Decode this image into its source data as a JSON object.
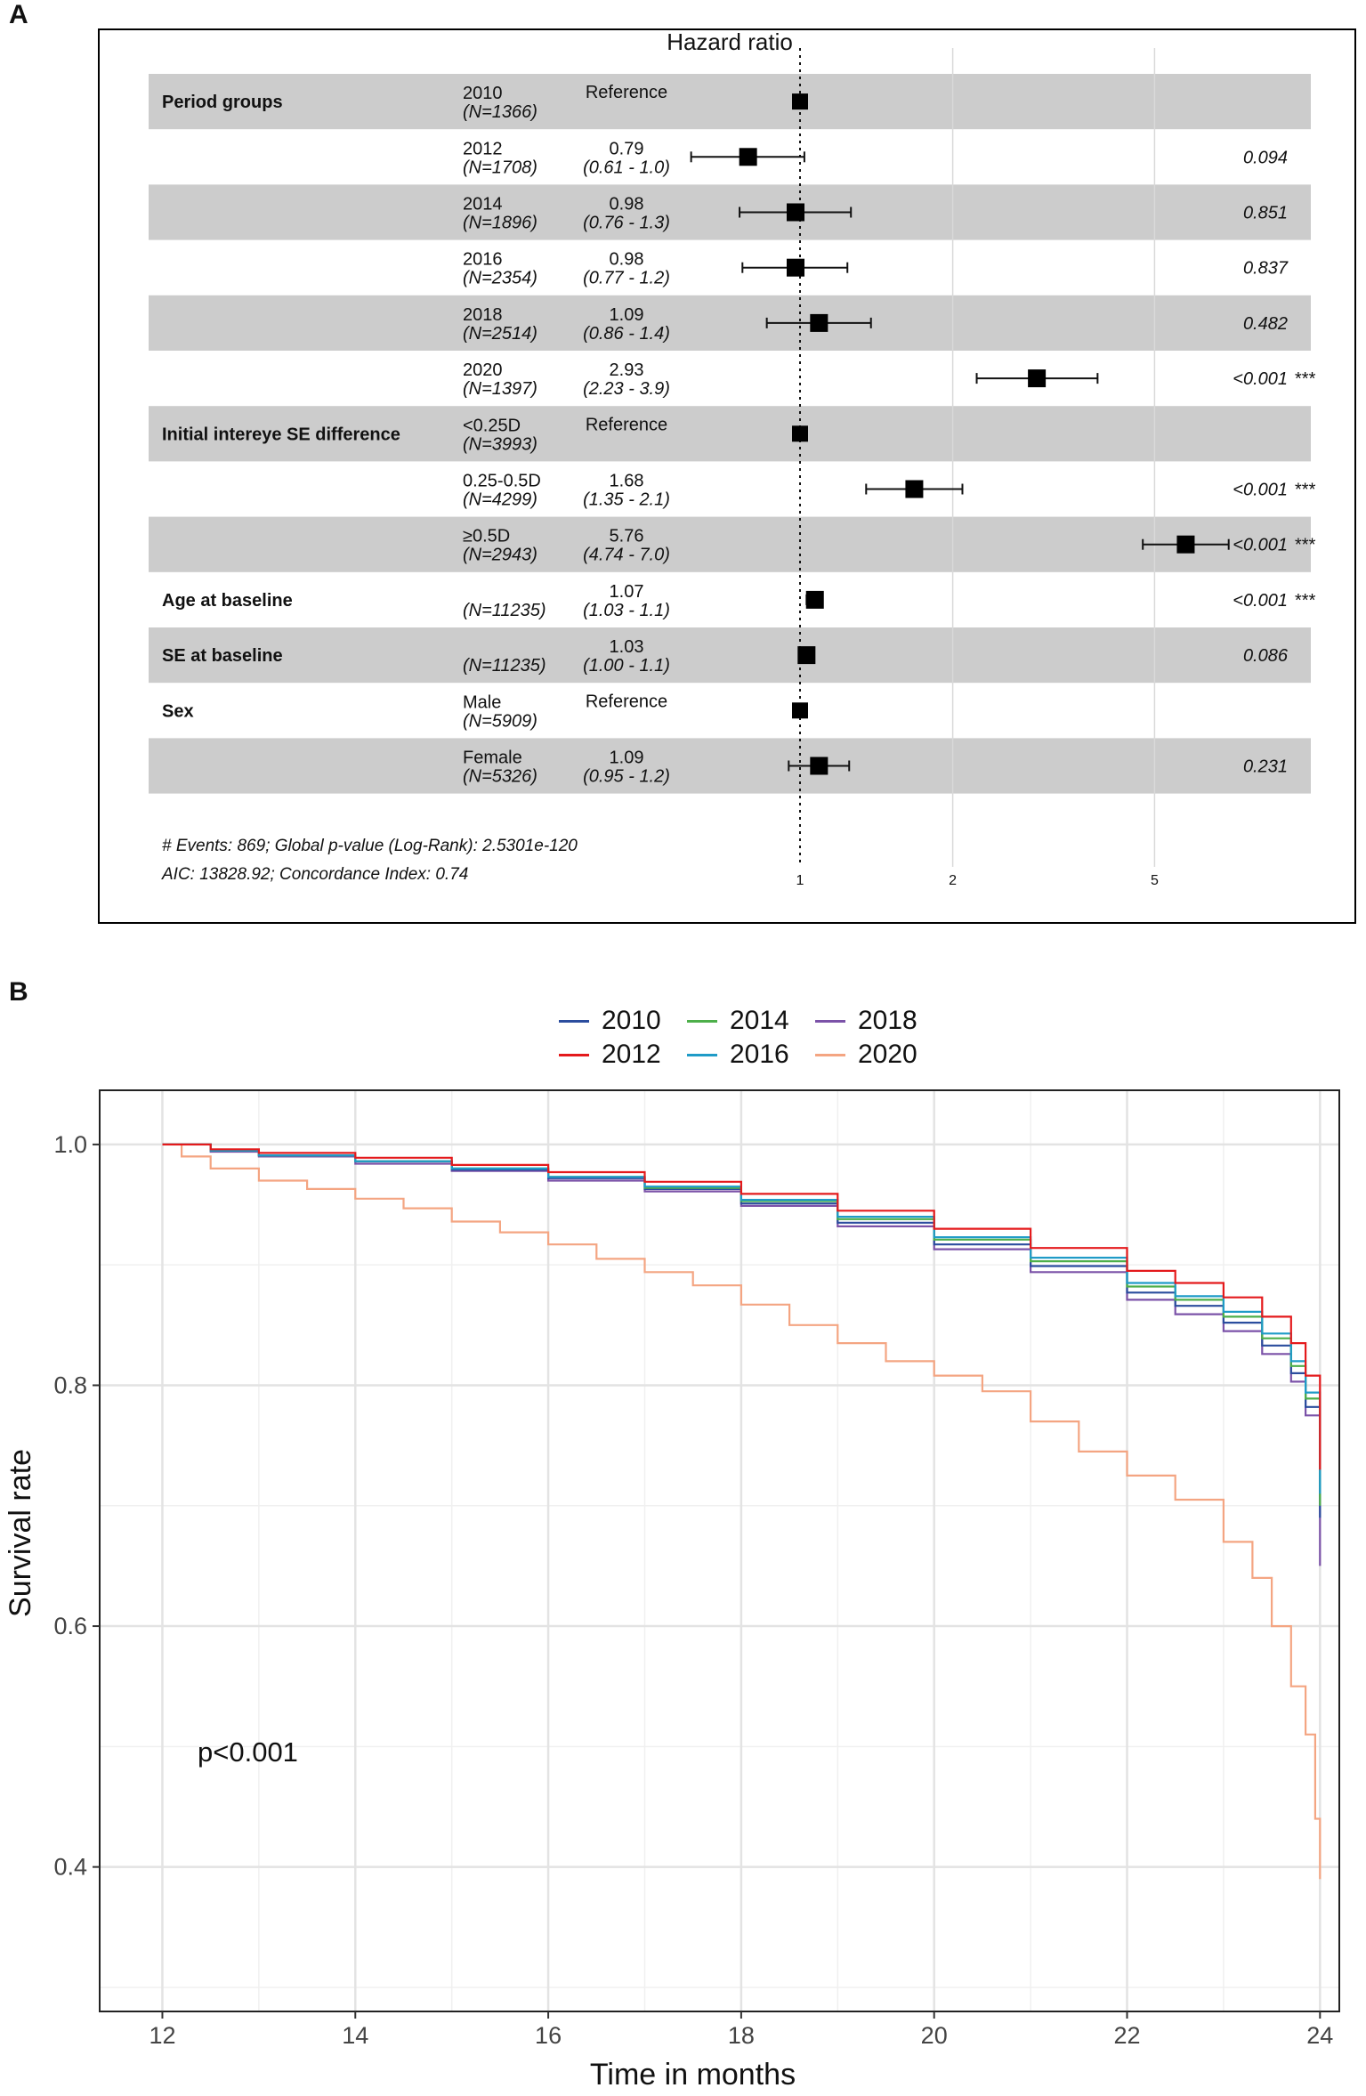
{
  "panel_a_label": "A",
  "panel_b_label": "B",
  "chart_data": [
    {
      "type": "forest",
      "title": "Hazard ratio",
      "x_scale": "log",
      "x_ticks": [
        "1",
        "2",
        "5"
      ],
      "x_tick_values": [
        1,
        2,
        5
      ],
      "reference_value": 1,
      "rows": [
        {
          "variable": "Period groups",
          "level": "2010",
          "n": "(N=1366)",
          "hr": "Reference",
          "ci": "",
          "p": "",
          "stars": "",
          "hr_value": 1.0,
          "ci_low": null,
          "ci_high": null
        },
        {
          "variable": "",
          "level": "2012",
          "n": "(N=1708)",
          "hr": "0.79",
          "ci": "(0.61 - 1.0)",
          "p": "0.094",
          "stars": "",
          "hr_value": 0.79,
          "ci_low": 0.61,
          "ci_high": 1.02
        },
        {
          "variable": "",
          "level": "2014",
          "n": "(N=1896)",
          "hr": "0.98",
          "ci": "(0.76 - 1.3)",
          "p": "0.851",
          "stars": "",
          "hr_value": 0.98,
          "ci_low": 0.76,
          "ci_high": 1.26
        },
        {
          "variable": "",
          "level": "2016",
          "n": "(N=2354)",
          "hr": "0.98",
          "ci": "(0.77 - 1.2)",
          "p": "0.837",
          "stars": "",
          "hr_value": 0.98,
          "ci_low": 0.77,
          "ci_high": 1.24
        },
        {
          "variable": "",
          "level": "2018",
          "n": "(N=2514)",
          "hr": "1.09",
          "ci": "(0.86 - 1.4)",
          "p": "0.482",
          "stars": "",
          "hr_value": 1.09,
          "ci_low": 0.86,
          "ci_high": 1.38
        },
        {
          "variable": "",
          "level": "2020",
          "n": "(N=1397)",
          "hr": "2.93",
          "ci": "(2.23 - 3.9)",
          "p": "<0.001",
          "stars": "***",
          "hr_value": 2.93,
          "ci_low": 2.23,
          "ci_high": 3.86
        },
        {
          "variable": "Initial intereye SE difference",
          "level": "<0.25D",
          "n": "(N=3993)",
          "hr": "Reference",
          "ci": "",
          "p": "",
          "stars": "",
          "hr_value": 1.0,
          "ci_low": null,
          "ci_high": null
        },
        {
          "variable": "",
          "level": "0.25-0.5D",
          "n": "(N=4299)",
          "hr": "1.68",
          "ci": "(1.35 - 2.1)",
          "p": "<0.001",
          "stars": "***",
          "hr_value": 1.68,
          "ci_low": 1.35,
          "ci_high": 2.09
        },
        {
          "variable": "",
          "level": "≥0.5D",
          "n": "(N=2943)",
          "hr": "5.76",
          "ci": "(4.74 - 7.0)",
          "p": "<0.001",
          "stars": "***",
          "hr_value": 5.76,
          "ci_low": 4.74,
          "ci_high": 7.0
        },
        {
          "variable": "Age at baseline",
          "level": "",
          "n": "(N=11235)",
          "hr": "1.07",
          "ci": "(1.03 - 1.1)",
          "p": "<0.001",
          "stars": "***",
          "hr_value": 1.07,
          "ci_low": 1.03,
          "ci_high": 1.1
        },
        {
          "variable": "SE at baseline",
          "level": "",
          "n": "(N=11235)",
          "hr": "1.03",
          "ci": "(1.00 - 1.1)",
          "p": "0.086",
          "stars": "",
          "hr_value": 1.03,
          "ci_low": 1.0,
          "ci_high": 1.06
        },
        {
          "variable": "Sex",
          "level": "Male",
          "n": "(N=5909)",
          "hr": "Reference",
          "ci": "",
          "p": "",
          "stars": "",
          "hr_value": 1.0,
          "ci_low": null,
          "ci_high": null
        },
        {
          "variable": "",
          "level": "Female",
          "n": "(N=5326)",
          "hr": "1.09",
          "ci": "(0.95 - 1.2)",
          "p": "0.231",
          "stars": "",
          "hr_value": 1.09,
          "ci_low": 0.95,
          "ci_high": 1.25
        }
      ],
      "footnote_1": "# Events: 869; Global p-value (Log-Rank): 2.5301e-120",
      "footnote_2": "AIC: 13828.92; Concordance Index: 0.74"
    },
    {
      "type": "line",
      "subtype": "kaplan-meier",
      "xlabel": "Time in months",
      "ylabel": "Survival rate",
      "xlim": [
        11.35,
        24.2
      ],
      "ylim": [
        0.28,
        1.045
      ],
      "x_ticks": [
        12,
        14,
        16,
        18,
        20,
        22,
        24
      ],
      "y_ticks": [
        0.4,
        0.6,
        0.8,
        1.0
      ],
      "y_tick_labels": [
        "0.4",
        "0.6",
        "0.8",
        "1.0"
      ],
      "annotation": "p<0.001",
      "grid": true,
      "legend_position": "top",
      "series": [
        {
          "name": "2010",
          "color": "#2b4d9e",
          "x": [
            12,
            12.5,
            13,
            14,
            15,
            16,
            17,
            18,
            19,
            20,
            21,
            22,
            22.5,
            23,
            23.4,
            23.7,
            23.85,
            24
          ],
          "y": [
            1.0,
            0.995,
            0.991,
            0.986,
            0.979,
            0.972,
            0.963,
            0.951,
            0.935,
            0.917,
            0.899,
            0.877,
            0.866,
            0.852,
            0.833,
            0.81,
            0.782,
            0.69
          ]
        },
        {
          "name": "2012",
          "color": "#e41a1c",
          "x": [
            12,
            12.5,
            13,
            14,
            15,
            16,
            17,
            18,
            19,
            20,
            21,
            22,
            22.5,
            23,
            23.4,
            23.7,
            23.85,
            24
          ],
          "y": [
            1.0,
            0.996,
            0.993,
            0.989,
            0.983,
            0.977,
            0.969,
            0.959,
            0.945,
            0.93,
            0.914,
            0.895,
            0.885,
            0.873,
            0.857,
            0.835,
            0.808,
            0.73
          ]
        },
        {
          "name": "2014",
          "color": "#4daf4a",
          "x": [
            12,
            12.5,
            13,
            14,
            15,
            16,
            17,
            18,
            19,
            20,
            21,
            22,
            22.5,
            23,
            23.4,
            23.7,
            23.85,
            24
          ],
          "y": [
            1.0,
            0.995,
            0.991,
            0.986,
            0.98,
            0.973,
            0.964,
            0.953,
            0.938,
            0.921,
            0.903,
            0.882,
            0.871,
            0.857,
            0.839,
            0.816,
            0.789,
            0.7
          ]
        },
        {
          "name": "2016",
          "color": "#1f9bc7",
          "x": [
            12,
            12.5,
            13,
            14,
            15,
            16,
            17,
            18,
            19,
            20,
            21,
            22,
            22.5,
            23,
            23.4,
            23.7,
            23.85,
            24
          ],
          "y": [
            1.0,
            0.995,
            0.991,
            0.986,
            0.98,
            0.973,
            0.965,
            0.954,
            0.94,
            0.923,
            0.906,
            0.885,
            0.874,
            0.861,
            0.843,
            0.82,
            0.794,
            0.71
          ]
        },
        {
          "name": "2018",
          "color": "#7b52a8",
          "x": [
            12,
            12.5,
            13,
            14,
            15,
            16,
            17,
            18,
            19,
            20,
            21,
            22,
            22.5,
            23,
            23.4,
            23.7,
            23.85,
            24
          ],
          "y": [
            1.0,
            0.994,
            0.99,
            0.984,
            0.978,
            0.97,
            0.961,
            0.949,
            0.932,
            0.913,
            0.894,
            0.871,
            0.859,
            0.845,
            0.826,
            0.803,
            0.775,
            0.65
          ]
        },
        {
          "name": "2020",
          "color": "#f4a582",
          "x": [
            12,
            12.2,
            12.5,
            13,
            13.5,
            14,
            14.5,
            15,
            15.5,
            16,
            16.5,
            17,
            17.5,
            18,
            18.5,
            19,
            19.5,
            20,
            20.5,
            21,
            21.5,
            22,
            22.5,
            23,
            23.3,
            23.5,
            23.7,
            23.85,
            23.95,
            24
          ],
          "y": [
            1.0,
            0.99,
            0.98,
            0.97,
            0.963,
            0.955,
            0.947,
            0.936,
            0.927,
            0.917,
            0.905,
            0.894,
            0.883,
            0.867,
            0.85,
            0.835,
            0.82,
            0.808,
            0.795,
            0.77,
            0.745,
            0.725,
            0.705,
            0.67,
            0.64,
            0.6,
            0.55,
            0.51,
            0.44,
            0.39
          ]
        }
      ]
    }
  ]
}
